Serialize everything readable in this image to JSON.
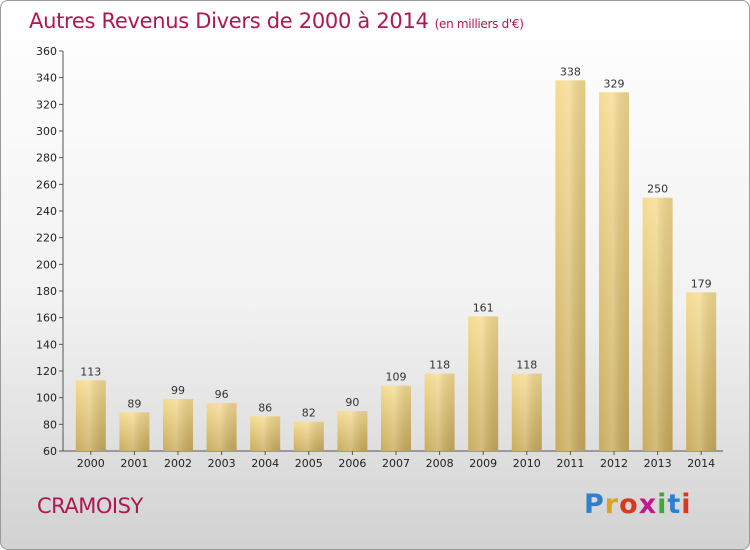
{
  "header": {
    "title": "Autres Revenus Divers de 2000 à 2014",
    "subtitle": "(en milliers d'€)"
  },
  "footer": {
    "commune": "CRAMOISY",
    "logo_text": "Proxiti",
    "logo_colors": [
      "#2f7fd0",
      "#d9a31d",
      "#d93a1f",
      "#c0188d",
      "#3aaa35",
      "#2f7fd0",
      "#d93a1f"
    ]
  },
  "colors": {
    "title": "#b0174f",
    "bar_light": "#f6dc92",
    "bar_dark": "#c9ac5c"
  },
  "chart_data": {
    "type": "bar",
    "categories": [
      "2000",
      "2001",
      "2002",
      "2003",
      "2004",
      "2005",
      "2006",
      "2007",
      "2008",
      "2009",
      "2010",
      "2011",
      "2012",
      "2013",
      "2014"
    ],
    "values": [
      113,
      89,
      99,
      96,
      86,
      82,
      90,
      109,
      118,
      161,
      118,
      338,
      329,
      250,
      179
    ],
    "ylim": [
      60,
      360
    ],
    "yticks": [
      60,
      80,
      100,
      120,
      140,
      160,
      180,
      200,
      220,
      240,
      260,
      280,
      300,
      320,
      340,
      360
    ],
    "grid": false,
    "legend": "none"
  }
}
